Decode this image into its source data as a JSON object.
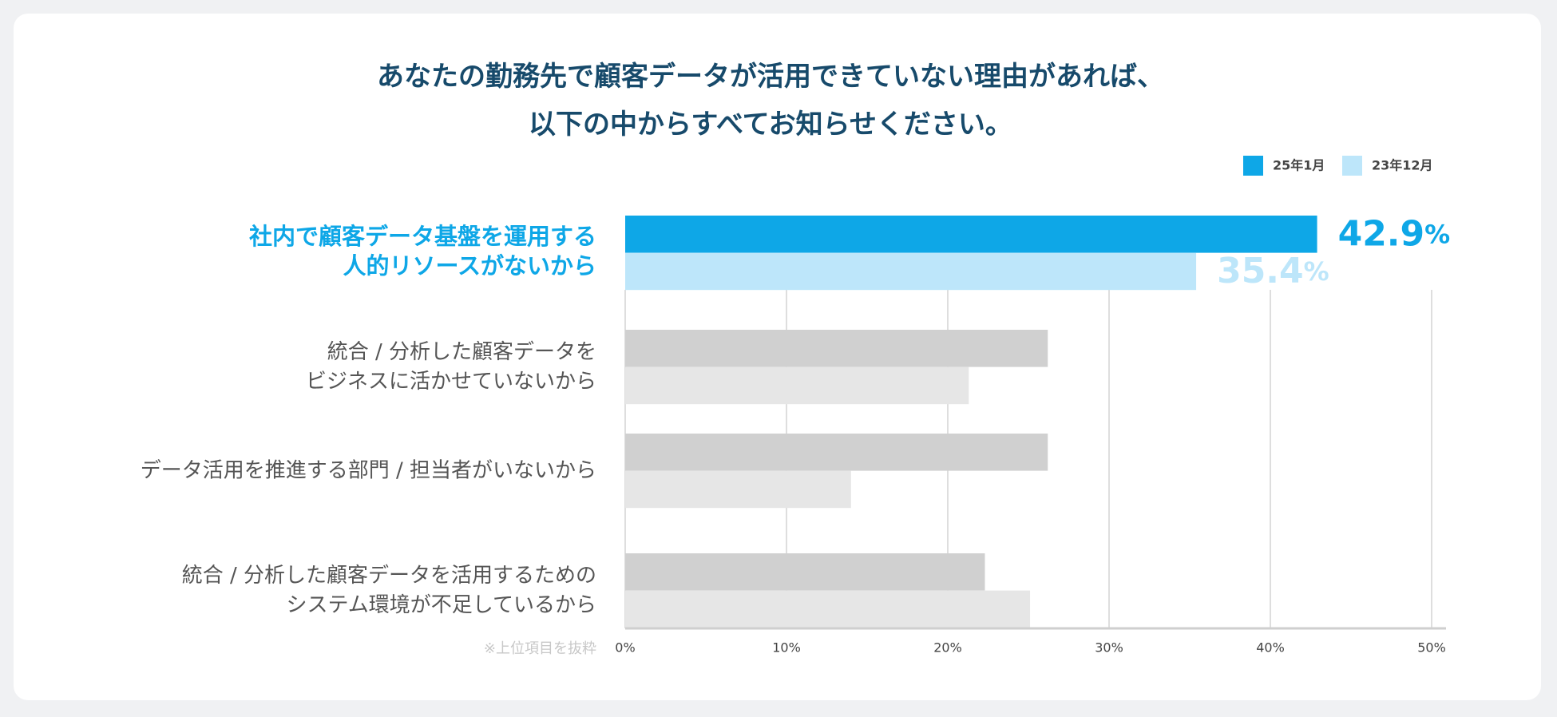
{
  "chart_data": {
    "type": "hbar",
    "title": "あなたの勤務先で顧客データが活用できていない理由があれば、\n以下の中からすべてお知らせください。",
    "categories": [
      "社内で顧客データ基盤を運用する\n人的リソースがないから",
      "統合 / 分析した顧客データを\nビジネスに活かせていないから",
      "データ活用を推進する部門 / 担当者がいないから",
      "統合 / 分析した顧客データを活用するための\nシステム環境が不足しているから"
    ],
    "series": [
      {
        "name": "25年1月",
        "color": "#0ea7e7",
        "values": [
          42.9,
          26.2,
          26.2,
          22.3
        ],
        "value_labels": [
          "42.9%",
          null,
          null,
          null
        ]
      },
      {
        "name": "23年12月",
        "color": "#bde6fa",
        "values": [
          35.4,
          21.3,
          14.0,
          25.1
        ],
        "value_labels": [
          "35.4%",
          null,
          null,
          null
        ]
      }
    ],
    "highlight": 0,
    "muted_colors": [
      "#d0d0d0",
      "#e6e6e6"
    ],
    "xlim": [
      0,
      50
    ],
    "xticks": [
      {
        "value": 0,
        "label": "0%"
      },
      {
        "value": 10,
        "label": "10%"
      },
      {
        "value": 20,
        "label": "20%"
      },
      {
        "value": 30,
        "label": "30%"
      },
      {
        "value": 40,
        "label": "40%"
      },
      {
        "value": 50,
        "label": "50%"
      }
    ],
    "grid": true,
    "legend": "top-right",
    "annotation": "※上位項目を抜粋"
  }
}
